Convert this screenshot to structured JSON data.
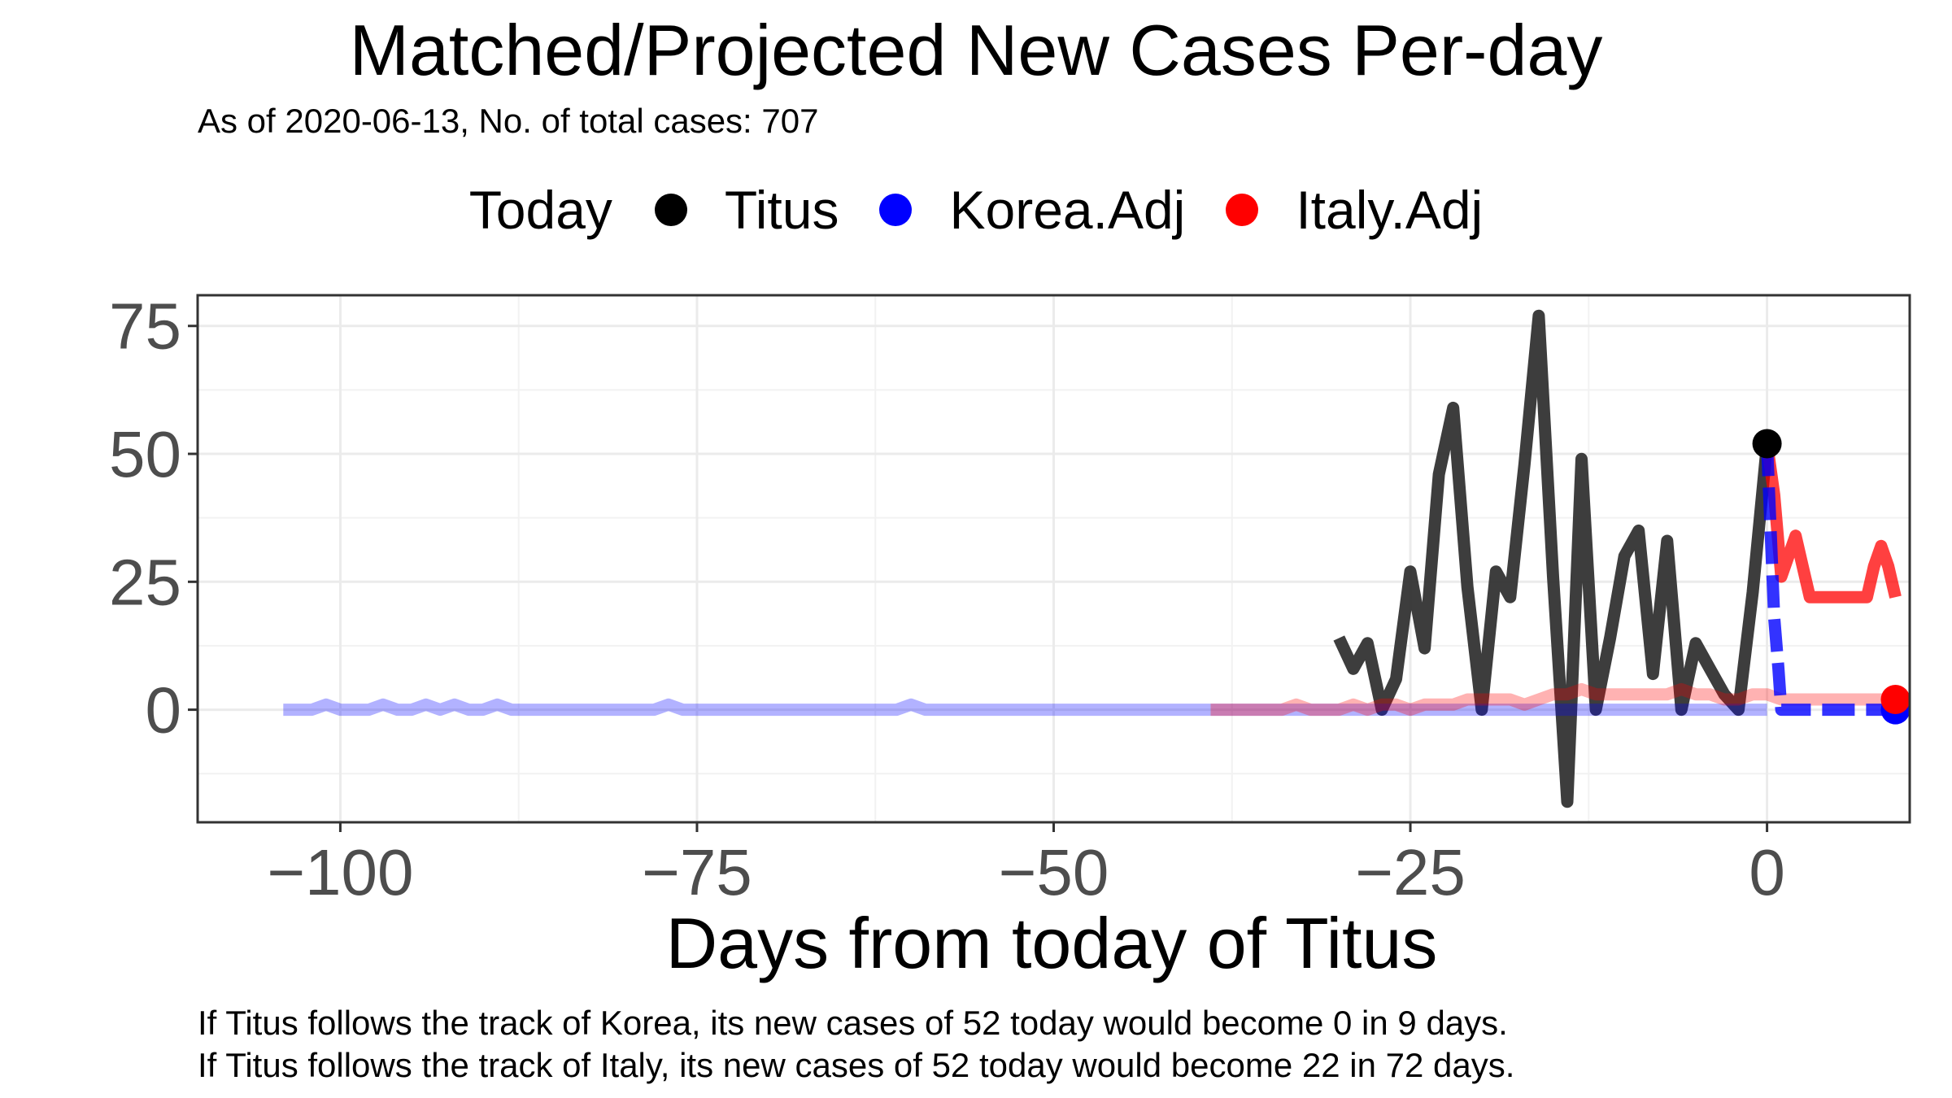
{
  "chart_data": {
    "type": "line",
    "title": "Matched/Projected New Cases Per-day",
    "subtitle": "As of 2020-06-13, No. of total cases: 707",
    "xlabel": "Days from today of Titus",
    "ylabel": "",
    "xlim": [
      -110,
      10
    ],
    "ylim": [
      -22,
      81
    ],
    "x_ticks": [
      -100,
      -75,
      -50,
      -25,
      0
    ],
    "y_ticks": [
      0,
      25,
      50,
      75
    ],
    "grid": true,
    "legend": {
      "title": "Today",
      "placement": "top",
      "entries": [
        {
          "label": "Titus",
          "color": "#000000"
        },
        {
          "label": "Korea.Adj",
          "color": "#0000ff"
        },
        {
          "label": "Italy.Adj",
          "color": "#ff0000"
        }
      ]
    },
    "series": [
      {
        "name": "Titus",
        "color": "#333333",
        "style": "solid",
        "points": [
          [
            -30,
            14
          ],
          [
            -29,
            8
          ],
          [
            -28,
            13
          ],
          [
            -27,
            0
          ],
          [
            -26,
            6
          ],
          [
            -25,
            27
          ],
          [
            -24,
            12
          ],
          [
            -23,
            46
          ],
          [
            -22,
            59
          ],
          [
            -21,
            24
          ],
          [
            -20,
            0
          ],
          [
            -19,
            27
          ],
          [
            -18,
            22
          ],
          [
            -17,
            48
          ],
          [
            -16,
            77
          ],
          [
            -15,
            26
          ],
          [
            -14,
            -18
          ],
          [
            -13,
            49
          ],
          [
            -12,
            0
          ],
          [
            -11,
            14
          ],
          [
            -10,
            30
          ],
          [
            -9,
            35
          ],
          [
            -8,
            7
          ],
          [
            -7,
            33
          ],
          [
            -6,
            0
          ],
          [
            -5,
            13
          ],
          [
            -4,
            8
          ],
          [
            -3,
            3
          ],
          [
            -2,
            0
          ],
          [
            -1,
            23
          ],
          [
            0,
            52
          ]
        ]
      },
      {
        "name": "Korea.Adj (history)",
        "color": "#0000ff",
        "opacity": 0.3,
        "style": "solid",
        "points": [
          [
            -104,
            0
          ],
          [
            -103,
            0
          ],
          [
            -102,
            0
          ],
          [
            -101,
            1
          ],
          [
            -100,
            0
          ],
          [
            -99,
            0
          ],
          [
            -98,
            0
          ],
          [
            -97,
            1
          ],
          [
            -96,
            0
          ],
          [
            -95,
            0
          ],
          [
            -94,
            1
          ],
          [
            -93,
            0
          ],
          [
            -92,
            1
          ],
          [
            -91,
            0
          ],
          [
            -90,
            0
          ],
          [
            -89,
            1
          ],
          [
            -88,
            0
          ],
          [
            -78,
            0
          ],
          [
            -77,
            1
          ],
          [
            -76,
            0
          ],
          [
            -61,
            0
          ],
          [
            -60,
            1
          ],
          [
            -59,
            0
          ],
          [
            -30,
            0
          ],
          [
            -20,
            0
          ],
          [
            -10,
            0
          ],
          [
            -1,
            0
          ],
          [
            0,
            0
          ]
        ]
      },
      {
        "name": "Italy.Adj (history)",
        "color": "#ff0000",
        "opacity": 0.3,
        "style": "solid",
        "points": [
          [
            -39,
            0
          ],
          [
            -35,
            0
          ],
          [
            -34,
            0
          ],
          [
            -33,
            1
          ],
          [
            -32,
            0
          ],
          [
            -31,
            0
          ],
          [
            -30,
            0
          ],
          [
            -29,
            1
          ],
          [
            -28,
            0
          ],
          [
            -27,
            1
          ],
          [
            -26,
            1
          ],
          [
            -25,
            0
          ],
          [
            -24,
            1
          ],
          [
            -23,
            1
          ],
          [
            -22,
            1
          ],
          [
            -21,
            2
          ],
          [
            -20,
            2
          ],
          [
            -19,
            2
          ],
          [
            -18,
            2
          ],
          [
            -17,
            1
          ],
          [
            -16,
            2
          ],
          [
            -15,
            3
          ],
          [
            -14,
            3
          ],
          [
            -13,
            4
          ],
          [
            -12,
            3
          ],
          [
            -11,
            3
          ],
          [
            -10,
            3
          ],
          [
            -9,
            3
          ],
          [
            -8,
            3
          ],
          [
            -7,
            3
          ],
          [
            -6,
            4
          ],
          [
            -5,
            3
          ],
          [
            -4,
            3
          ],
          [
            -3,
            2
          ],
          [
            -2,
            2
          ],
          [
            -1,
            3
          ],
          [
            0,
            3
          ],
          [
            1,
            2
          ],
          [
            2,
            2
          ],
          [
            3,
            2
          ],
          [
            4,
            2
          ],
          [
            5,
            2
          ],
          [
            6,
            2
          ],
          [
            7,
            2
          ],
          [
            8,
            2
          ],
          [
            9,
            2
          ]
        ]
      },
      {
        "name": "Italy.Adj (projection)",
        "color": "#ff0000",
        "opacity": 0.75,
        "style": "solid",
        "points": [
          [
            0,
            52
          ],
          [
            0.5,
            42
          ],
          [
            1,
            26
          ],
          [
            1.5,
            30
          ],
          [
            2,
            34
          ],
          [
            2.5,
            28
          ],
          [
            3,
            22
          ],
          [
            4,
            22
          ],
          [
            5,
            22
          ],
          [
            6,
            22
          ],
          [
            7,
            22
          ],
          [
            7.5,
            28
          ],
          [
            8,
            32
          ],
          [
            8.5,
            28
          ],
          [
            9,
            22
          ]
        ]
      },
      {
        "name": "Korea.Adj (projection)",
        "color": "#0000ff",
        "opacity": 0.8,
        "style": "dashed",
        "points": [
          [
            0,
            52
          ],
          [
            0.5,
            18
          ],
          [
            0.8,
            8
          ],
          [
            1,
            0
          ],
          [
            2,
            0
          ],
          [
            3,
            0
          ],
          [
            4,
            0
          ],
          [
            5,
            0
          ],
          [
            6,
            0
          ],
          [
            7,
            0
          ],
          [
            8,
            0
          ],
          [
            9,
            0
          ]
        ]
      }
    ],
    "today_markers": [
      {
        "label": "Titus",
        "x": 0,
        "y": 52,
        "color": "#000000"
      },
      {
        "label": "Korea.Adj",
        "x": 9,
        "y": 0,
        "color": "#0000ff"
      },
      {
        "label": "Italy.Adj",
        "x": 9,
        "y": 2,
        "color": "#ff0000"
      }
    ]
  },
  "captions": {
    "korea": "If Titus follows the track of Korea, its new cases of 52 today would become 0 in 9 days.",
    "italy": "If Titus follows the track of Italy, its new cases of 52 today would become 22 in 72 days."
  }
}
